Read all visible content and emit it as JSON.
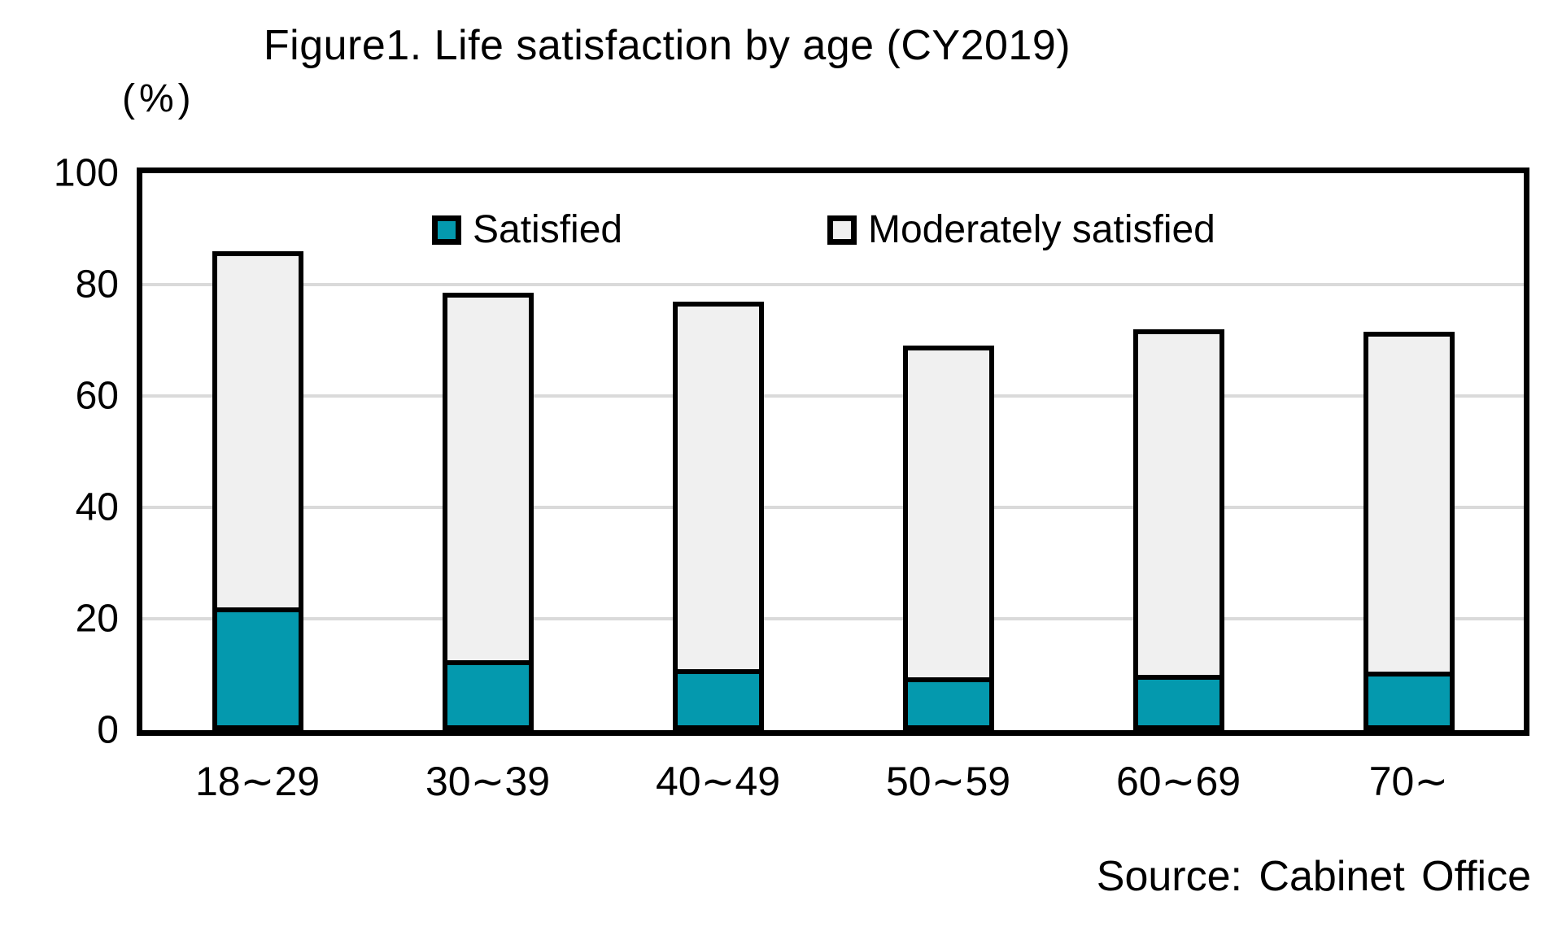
{
  "chart": {
    "title": "Figure1. Life satisfaction by age (CY2019)",
    "unit_label": "(%)",
    "source": "Source: Cabinet Office"
  },
  "chart_data": {
    "type": "bar",
    "stacked": true,
    "title": "Figure1. Life satisfaction by age (CY2019)",
    "xlabel": "",
    "ylabel": "(%)",
    "ylim": [
      0,
      100
    ],
    "yticks": [
      0,
      20,
      40,
      60,
      80,
      100
    ],
    "grid": true,
    "legend_position": "top-inside",
    "categories": [
      "18∼29",
      "30∼39",
      "40∼49",
      "50∼59",
      "60∼69",
      "70∼"
    ],
    "series": [
      {
        "name": "Satisfied",
        "color": "#0499AE",
        "values": [
          22,
          12.5,
          11,
          9.5,
          10,
          10.5
        ]
      },
      {
        "name": "Moderately satisfied",
        "color": "#F0F0F0",
        "values": [
          64,
          66,
          66,
          59.5,
          62,
          61
        ]
      }
    ],
    "totals": [
      86,
      78.5,
      77,
      69,
      72,
      71.5
    ],
    "source": "Source: Cabinet Office"
  },
  "colors": {
    "satisfied": "#0499AE",
    "moderately_satisfied": "#F0F0F0",
    "gridline": "#DADADA",
    "border": "#000000",
    "background": "#FFFFFF"
  }
}
